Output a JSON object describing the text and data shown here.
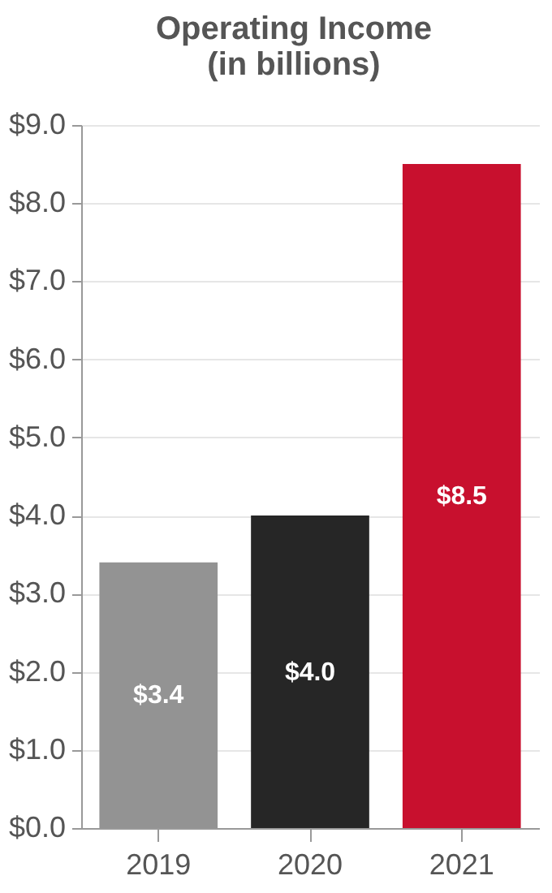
{
  "chart_data": {
    "type": "bar",
    "title": [
      "Operating Income",
      "(in billions)"
    ],
    "categories": [
      "2019",
      "2020",
      "2021"
    ],
    "values": [
      3.4,
      4.0,
      8.5
    ],
    "colors": [
      "#939393",
      "#262626",
      "#c8102e"
    ],
    "value_labels": [
      "$3.4",
      "$4.0",
      "$8.5"
    ],
    "ylim": [
      0,
      9
    ],
    "yticks": [
      {
        "value": 0,
        "label": "$0.0"
      },
      {
        "value": 1,
        "label": "$1.0"
      },
      {
        "value": 2,
        "label": "$2.0"
      },
      {
        "value": 3,
        "label": "$3.0"
      },
      {
        "value": 4,
        "label": "$4.0"
      },
      {
        "value": 5,
        "label": "$5.0"
      },
      {
        "value": 6,
        "label": "$6.0"
      },
      {
        "value": 7,
        "label": "$7.0"
      },
      {
        "value": 8,
        "label": "$8.0"
      },
      {
        "value": 9,
        "label": "$9.0"
      }
    ],
    "grid": "y"
  }
}
